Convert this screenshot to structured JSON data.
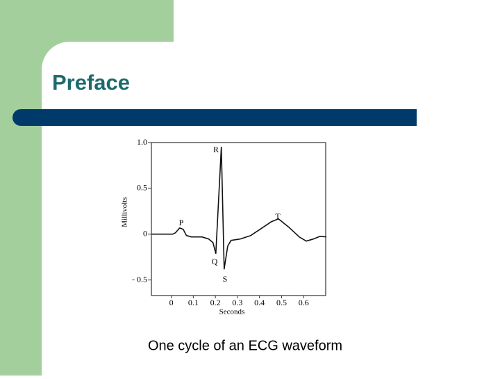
{
  "slide": {
    "title": "Preface",
    "caption": "One cycle of an ECG waveform"
  },
  "chart_data": {
    "type": "line",
    "x_label": "Seconds",
    "y_label": "Millivolts",
    "xlim": [
      -0.09,
      0.7
    ],
    "ylim": [
      -0.67,
      1.0
    ],
    "xticks": [
      0,
      0.1,
      0.2,
      0.3,
      0.4,
      0.5,
      0.6
    ],
    "yticks": [
      {
        "value": 1.0,
        "label": "1.0"
      },
      0.5,
      0,
      {
        "value": -0.5,
        "label": "- 0.5"
      }
    ],
    "annotations": [
      "P",
      "Q",
      "R",
      "S",
      "T"
    ],
    "series": [
      {
        "color": "#111111",
        "x": [
          -0.088,
          0.006,
          0.019,
          0.038,
          0.054,
          0.069,
          0.091,
          0.139,
          0.17,
          0.189,
          0.202,
          0.227,
          0.24,
          0.256,
          0.271,
          0.312,
          0.36,
          0.407,
          0.454,
          0.486,
          0.533,
          0.58,
          0.612,
          0.644,
          0.675,
          0.703
        ],
        "values": [
          0,
          0,
          0.015,
          0.068,
          0.053,
          -0.015,
          -0.03,
          -0.03,
          -0.053,
          -0.091,
          -0.21,
          0.95,
          -0.38,
          -0.13,
          -0.068,
          -0.053,
          -0.015,
          0.06,
          0.136,
          0.167,
          0.076,
          -0.03,
          -0.076,
          -0.053,
          -0.023,
          -0.03
        ]
      }
    ]
  }
}
